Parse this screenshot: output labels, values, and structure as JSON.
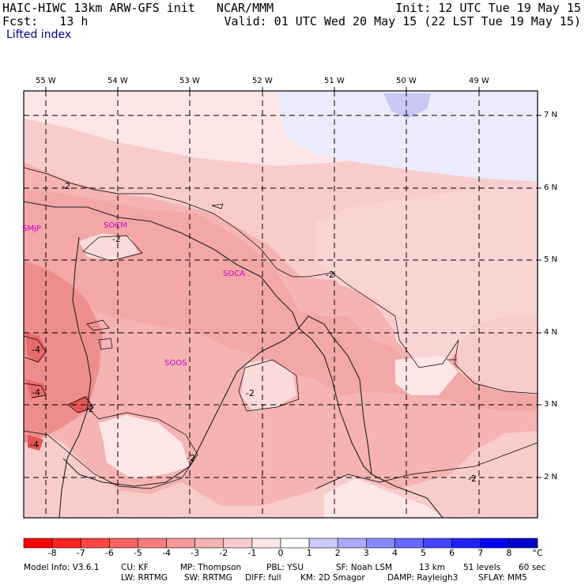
{
  "header": {
    "model_line": "HAIC-HIWC 13km ARW-GFS init   NCAR/MMM",
    "init_line": "Init: 12 UTC Tue 19 May 15",
    "fcst_line": "Fcst:   13 h",
    "valid_line": "Valid: 01 UTC Wed 20 May 15 (22 LST Tue 19 May 15)",
    "field_name": "Lifted index"
  },
  "map": {
    "lon_labels": [
      "55 W",
      "54 W",
      "53 W",
      "52 W",
      "51 W",
      "50 W",
      "49 W"
    ],
    "lat_labels": [
      "7 N",
      "6 N",
      "5 N",
      "4 N",
      "3 N",
      "2 N"
    ],
    "stations": [
      "SMJP",
      "SOCM",
      "SOCA",
      "SOOS"
    ],
    "contour_labels": [
      "-2",
      "-2",
      "-2",
      "-2",
      "-2",
      "-2",
      "-2",
      "-4",
      "-4",
      "-4"
    ]
  },
  "colorbar": {
    "tick_labels": [
      "-8",
      "-7",
      "-6",
      "-5",
      "-4",
      "-3",
      "-2",
      "-1",
      "0",
      "1",
      "2",
      "3",
      "4",
      "5",
      "6",
      "7",
      "8"
    ],
    "unit": "°C",
    "colors": [
      "#ff0000",
      "#ff2222",
      "#fe4444",
      "#fb6262",
      "#f87e7e",
      "#f69999",
      "#f5b3b3",
      "#f9cccc",
      "#fde6e6",
      "#ffffff",
      "#ccccff",
      "#aaaaff",
      "#8888ff",
      "#6666ff",
      "#4444ff",
      "#2222ff",
      "#0000ff"
    ]
  },
  "footer": {
    "line1": [
      "Model Info: V3.6.1",
      "CU: KF",
      "MP: Thompson",
      "PBL: YSU",
      "SF: Noah LSM",
      "13 km",
      "51 levels",
      "60 sec"
    ],
    "line2": [
      "LW: RRTMG",
      "SW: RRTMG",
      "DIFF: full",
      "KM: 2D Smagor",
      "DAMP: Rayleigh3",
      "SFLAY: MM5"
    ]
  }
}
